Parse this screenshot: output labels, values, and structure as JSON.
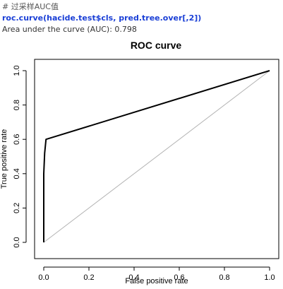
{
  "console": {
    "comment": "# 过采样AUC值",
    "command": "roc.curve(hacide.test$cls, pred.tree.over[,2])",
    "output": "Area under the curve (AUC): 0.798"
  },
  "chart_data": {
    "type": "line",
    "title": "ROC curve",
    "xlabel": "False positive rate",
    "ylabel": "True positive rate",
    "xlim": [
      0,
      1
    ],
    "ylim": [
      0,
      1
    ],
    "xticks": [
      "0.0",
      "0.2",
      "0.4",
      "0.6",
      "0.8",
      "1.0"
    ],
    "yticks": [
      "0.0",
      "0.2",
      "0.4",
      "0.6",
      "0.8",
      "1.0"
    ],
    "grid": false,
    "series": [
      {
        "values": [
          {
            "x": 0.0,
            "y": 0.0
          },
          {
            "x": 0.0,
            "y": 0.4
          },
          {
            "x": 0.004,
            "y": 0.52
          },
          {
            "x": 0.01,
            "y": 0.6
          },
          {
            "x": 1.0,
            "y": 1.0
          }
        ],
        "color": "#000000"
      },
      {
        "values": [
          {
            "x": 0.0,
            "y": 0.0
          },
          {
            "x": 1.0,
            "y": 1.0
          }
        ],
        "color": "#b3b3b3"
      }
    ]
  }
}
